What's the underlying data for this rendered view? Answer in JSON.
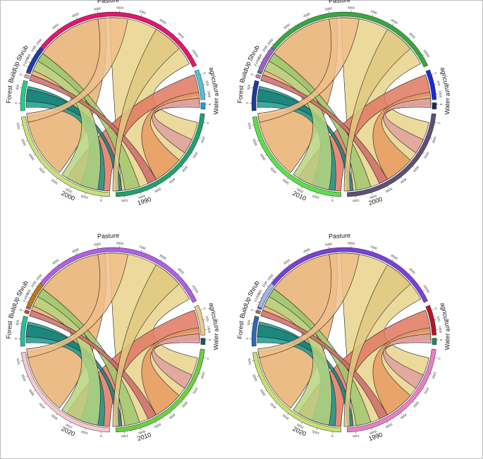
{
  "diagrams": [
    {
      "sectors": [
        {
          "label": "Pasture",
          "color": "#e0186e",
          "start": -160,
          "end": -25,
          "ticks": [
            "1000",
            "2000",
            "3000",
            "4000",
            "5000",
            "6000",
            "7000",
            "8000",
            "9000",
            "10000"
          ]
        },
        {
          "label": "agriculture",
          "color": "#4fc3d8",
          "start": -22,
          "end": -3,
          "ticks": [
            "0",
            "500",
            "1000"
          ]
        },
        {
          "label": "Water",
          "color": "#1a9fe0",
          "start": -1,
          "end": 3,
          "ticks": [
            "0"
          ]
        },
        {
          "label": "1990",
          "color": "#1ea36a",
          "start": 6,
          "end": 88,
          "ticks": [
            "0",
            "1000",
            "2000",
            "3000",
            "4000",
            "5000",
            "6000",
            "7000"
          ]
        },
        {
          "label": "2000",
          "color": "#c7e07a",
          "start": 92,
          "end": 172,
          "ticks": [
            "0",
            "1000",
            "2000",
            "3000",
            "4000",
            "5000",
            "6000",
            "7000"
          ]
        },
        {
          "label": "Forest",
          "color": "#20d08a",
          "start": 176,
          "end": 195,
          "ticks": [
            "0",
            "500"
          ]
        },
        {
          "label": "BuildUp",
          "color": "#b8b8b8",
          "start": 197,
          "end": 199,
          "ticks": [
            "0"
          ]
        },
        {
          "label": "Shrub",
          "color": "#1f3fa8",
          "start": 201,
          "end": 218,
          "ticks": [
            "0",
            "500",
            "1000"
          ]
        }
      ]
    },
    {
      "sectors": [
        {
          "label": "Pasture",
          "color": "#3aa640",
          "start": -160,
          "end": -25,
          "ticks": [
            "1000",
            "2000",
            "3000",
            "4000",
            "5000",
            "6000",
            "7000",
            "8000",
            "9000",
            "10000"
          ]
        },
        {
          "label": "agriculture",
          "color": "#1b2ad8",
          "start": -22,
          "end": -3,
          "ticks": [
            "0",
            "500",
            "1000"
          ]
        },
        {
          "label": "Water",
          "color": "#1b2a6a",
          "start": -1,
          "end": 3,
          "ticks": [
            "0"
          ]
        },
        {
          "label": "2000",
          "color": "#5e4f7a",
          "start": 6,
          "end": 88,
          "ticks": [
            "0",
            "1000",
            "2000",
            "3000",
            "4000",
            "5000",
            "6000",
            "7000"
          ]
        },
        {
          "label": "2010",
          "color": "#5be04a",
          "start": 92,
          "end": 172,
          "ticks": [
            "0",
            "1000",
            "2000",
            "3000",
            "4000",
            "5000",
            "6000",
            "7000"
          ]
        },
        {
          "label": "Forest",
          "color": "#1b3aa0",
          "start": 176,
          "end": 195,
          "ticks": [
            "0",
            "500"
          ]
        },
        {
          "label": "BuildUp",
          "color": "#d070d8",
          "start": 197,
          "end": 199,
          "ticks": [
            "0"
          ]
        },
        {
          "label": "Shrub",
          "color": "#a060c8",
          "start": 201,
          "end": 218,
          "ticks": [
            "0",
            "500",
            "1000"
          ]
        }
      ]
    },
    {
      "sectors": [
        {
          "label": "Pasture",
          "color": "#b060e0",
          "start": -160,
          "end": -25,
          "ticks": [
            "1000",
            "2000",
            "3000",
            "4000",
            "5000",
            "6000",
            "7000",
            "8000",
            "9000",
            "10000"
          ]
        },
        {
          "label": "agriculture",
          "color": "#f0c890",
          "start": -22,
          "end": -3,
          "ticks": [
            "0",
            "500",
            "1000"
          ]
        },
        {
          "label": "Water",
          "color": "#1a5a50",
          "start": -1,
          "end": 3,
          "ticks": [
            "0"
          ]
        },
        {
          "label": "2010",
          "color": "#6ad040",
          "start": 6,
          "end": 88,
          "ticks": [
            "0",
            "1000",
            "2000",
            "3000",
            "4000",
            "5000",
            "6000",
            "7000"
          ]
        },
        {
          "label": "2020",
          "color": "#f5c8d0",
          "start": 92,
          "end": 172,
          "ticks": [
            "0",
            "1000",
            "2000",
            "3000",
            "4000",
            "5000",
            "6000",
            "7000"
          ]
        },
        {
          "label": "Forest",
          "color": "#20c0a0",
          "start": 176,
          "end": 195,
          "ticks": [
            "0",
            "500"
          ]
        },
        {
          "label": "BuildUp",
          "color": "#e04020",
          "start": 197,
          "end": 199,
          "ticks": [
            "0"
          ]
        },
        {
          "label": "Shrub",
          "color": "#c07818",
          "start": 201,
          "end": 218,
          "ticks": [
            "0",
            "500",
            "1000"
          ]
        }
      ]
    },
    {
      "sectors": [
        {
          "label": "Pasture",
          "color": "#7a40d8",
          "start": -160,
          "end": -25,
          "ticks": [
            "1000",
            "2000",
            "3000",
            "4000",
            "5000",
            "6000",
            "7000",
            "8000",
            "9000",
            "10000"
          ]
        },
        {
          "label": "agriculture",
          "color": "#b0182a",
          "start": -22,
          "end": -3,
          "ticks": [
            "0",
            "500",
            "1000"
          ]
        },
        {
          "label": "Water",
          "color": "#1a8a60",
          "start": -1,
          "end": 3,
          "ticks": [
            "0"
          ]
        },
        {
          "label": "1990",
          "color": "#e880c8",
          "start": 6,
          "end": 88,
          "ticks": [
            "0",
            "1000",
            "2000",
            "3000",
            "4000",
            "5000",
            "6000",
            "7000"
          ]
        },
        {
          "label": "2020",
          "color": "#c8e070",
          "start": 92,
          "end": 172,
          "ticks": [
            "0",
            "1000",
            "2000",
            "3000",
            "4000",
            "5000",
            "6000",
            "7000"
          ]
        },
        {
          "label": "Forest",
          "color": "#2a6ab8",
          "start": 176,
          "end": 195,
          "ticks": [
            "0",
            "500"
          ]
        },
        {
          "label": "BuildUp",
          "color": "#a07850",
          "start": 197,
          "end": 199,
          "ticks": [
            "0"
          ]
        },
        {
          "label": "Shrub",
          "color": "#9ab8e8",
          "start": 201,
          "end": 218,
          "ticks": [
            "0",
            "500",
            "1000"
          ]
        }
      ]
    }
  ]
}
